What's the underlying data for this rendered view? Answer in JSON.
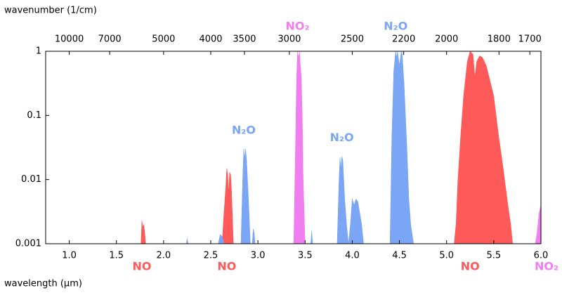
{
  "chart_data": {
    "type": "area",
    "xlabel": "wavelength (μm)",
    "x2label": "wavenumber (1/cm)",
    "xlim": [
      0.75,
      6.0
    ],
    "xticks": [
      {
        "value": 1,
        "label": "1.0"
      },
      1.5,
      {
        "value": 2,
        "label": "2.0"
      },
      2.5,
      {
        "value": 3,
        "label": "3.0"
      },
      3.5,
      {
        "value": 4,
        "label": "4.0"
      },
      4.5,
      {
        "value": 5,
        "label": "5.0"
      },
      5.5,
      {
        "value": 6,
        "label": "6.0"
      }
    ],
    "x2scale": "reciprocal",
    "x2lim": [
      13333.33,
      1666.67
    ],
    "x2ticks": [
      10000,
      7000,
      5000,
      4000,
      3500,
      3000,
      2500,
      2200,
      2000,
      1800,
      1700
    ],
    "yscale": "log",
    "ylim": [
      0.001,
      1
    ],
    "yticks": [
      0.001,
      0.01,
      0.1,
      1
    ],
    "series": [
      {
        "name": "NO",
        "color": "#ff5a5a",
        "label_position": "bottom",
        "x": [
          1.76,
          1.77,
          1.78,
          1.79,
          1.8,
          1.81
        ],
        "values": [
          0.001,
          0.0023,
          0.0018,
          0.002,
          0.0015,
          0.001
        ]
      },
      {
        "name": "NO",
        "color": "#ff5a5a",
        "label_position": "bottom",
        "x": [
          2.62,
          2.64,
          2.66,
          2.67,
          2.68,
          2.69,
          2.7,
          2.71,
          2.72,
          2.74
        ],
        "values": [
          0.001,
          0.003,
          0.008,
          0.015,
          0.012,
          0.006,
          0.013,
          0.012,
          0.007,
          0.001
        ]
      },
      {
        "name": "N₂O",
        "color": "#7aa6f5",
        "label_position": "above-peak",
        "x": [
          2.24,
          2.25,
          2.26,
          2.27,
          2.58,
          2.6,
          2.62,
          2.64,
          2.82,
          2.84,
          2.85,
          2.86,
          2.87,
          2.88,
          2.9,
          2.92,
          2.93,
          2.94,
          2.95,
          2.96,
          2.97
        ],
        "values": [
          0.001,
          0.0012,
          0.001,
          null,
          0.001,
          0.0014,
          0.0013,
          0.001,
          0.001,
          0.012,
          0.03,
          0.022,
          0.03,
          0.02,
          0.005,
          0.001,
          null,
          0.001,
          0.0017,
          0.0015,
          0.001
        ]
      },
      {
        "name": "NO₂",
        "color": "#f07ef0",
        "label_position": "top",
        "x": [
          3.38,
          3.4,
          3.41,
          3.42,
          3.43,
          3.44,
          3.45,
          3.46,
          3.47,
          3.48,
          3.5
        ],
        "values": [
          0.001,
          0.05,
          0.4,
          1,
          0.8,
          1,
          0.6,
          0.4,
          0.1,
          0.01,
          0.001
        ]
      },
      {
        "name": "N₂O",
        "color": "#7aa6f5",
        "label_position": "above-peak",
        "x": [
          3.56,
          3.57,
          3.58,
          3.6,
          3.84,
          3.86,
          3.87,
          3.88,
          3.89,
          3.9,
          3.91,
          3.92,
          3.94,
          3.96,
          3.98,
          4.0,
          4.02,
          4.04,
          4.06,
          4.08,
          4.1,
          4.12
        ],
        "values": [
          0.001,
          0.0016,
          0.001,
          null,
          0.001,
          0.01,
          0.022,
          0.015,
          0.023,
          0.02,
          0.01,
          0.005,
          0.002,
          0.001,
          0.002,
          0.005,
          0.004,
          0.005,
          0.0045,
          0.003,
          0.002,
          0.001
        ]
      },
      {
        "name": "N₂O",
        "color": "#7aa6f5",
        "label_position": "top",
        "x": [
          4.4,
          4.42,
          4.44,
          4.46,
          4.47,
          4.48,
          4.5,
          4.52,
          4.53,
          4.55,
          4.58,
          4.6,
          4.62,
          4.65
        ],
        "values": [
          0.001,
          0.05,
          0.5,
          1,
          0.8,
          1,
          0.6,
          1,
          0.9,
          0.3,
          0.03,
          0.005,
          0.002,
          0.001
        ]
      },
      {
        "name": "NO",
        "color": "#ff5a5a",
        "label_position": "bottom",
        "x": [
          5.08,
          5.1,
          5.12,
          5.15,
          5.18,
          5.22,
          5.25,
          5.28,
          5.3,
          5.32,
          5.35,
          5.38,
          5.42,
          5.45,
          5.5,
          5.55,
          5.6,
          5.65,
          5.68,
          5.7
        ],
        "values": [
          0.001,
          0.002,
          0.01,
          0.05,
          0.2,
          0.7,
          1,
          0.9,
          0.4,
          0.7,
          0.85,
          0.8,
          0.6,
          0.4,
          0.2,
          0.05,
          0.015,
          0.004,
          0.002,
          0.001
        ]
      },
      {
        "name": "NO₂",
        "color": "#f07ef0",
        "label_position": "bottom",
        "x": [
          5.94,
          5.96,
          5.98,
          6.0
        ],
        "values": [
          0.001,
          0.0015,
          0.003,
          0.004
        ]
      }
    ]
  }
}
